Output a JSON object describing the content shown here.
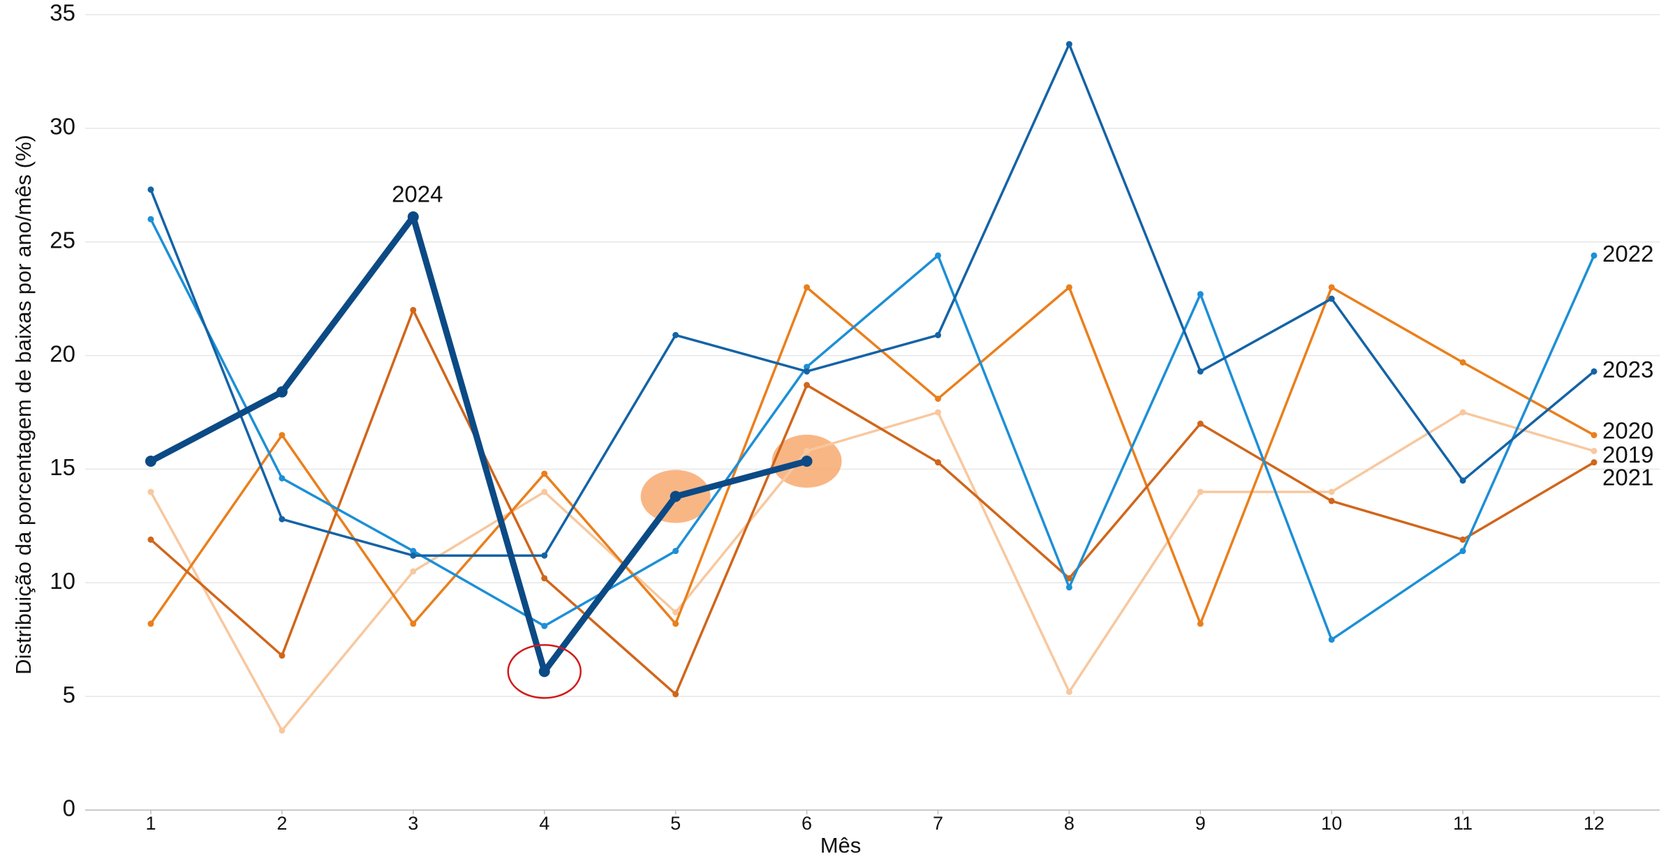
{
  "chart_data": {
    "type": "line",
    "x_label": "Mês",
    "y_label": "Distribuição da porcentagem de baixas por ano/mês (%)",
    "x": [
      1,
      2,
      3,
      4,
      5,
      6,
      7,
      8,
      9,
      10,
      11,
      12
    ],
    "xlim": [
      0.5,
      12.5
    ],
    "xticks": [
      1,
      2,
      3,
      4,
      5,
      6,
      7,
      8,
      9,
      10,
      11,
      12
    ],
    "ylim": [
      0,
      35
    ],
    "yticks": [
      0,
      5,
      10,
      15,
      20,
      25,
      30,
      35
    ],
    "grid": true,
    "series": [
      {
        "name": "2019",
        "color": "#f8c89f",
        "values": [
          14.0,
          3.5,
          10.5,
          14.0,
          8.7,
          15.8,
          17.5,
          5.2,
          14.0,
          14.0,
          17.5,
          15.8
        ]
      },
      {
        "name": "2020",
        "color": "#ea7f1c",
        "values": [
          8.2,
          16.5,
          8.2,
          14.8,
          8.2,
          23.0,
          18.1,
          23.0,
          8.2,
          23.0,
          19.7,
          16.5
        ]
      },
      {
        "name": "2021",
        "color": "#d0661b",
        "values": [
          11.9,
          6.8,
          22.0,
          10.2,
          5.1,
          18.7,
          15.3,
          10.2,
          17.0,
          13.6,
          11.9,
          15.3
        ]
      },
      {
        "name": "2022",
        "color": "#1d8fd6",
        "values": [
          26.0,
          14.6,
          11.4,
          8.1,
          11.4,
          19.5,
          24.4,
          9.8,
          22.7,
          7.5,
          11.4,
          24.4
        ]
      },
      {
        "name": "2023",
        "color": "#1463a6",
        "values": [
          27.3,
          12.8,
          11.2,
          11.2,
          20.9,
          19.3,
          20.9,
          33.7,
          19.3,
          22.5,
          14.5,
          19.3
        ]
      },
      {
        "name": "2024",
        "color": "#0b4a85",
        "values": [
          15.35,
          18.4,
          26.1,
          6.1,
          13.8,
          15.35,
          null,
          null,
          null,
          null,
          null,
          null
        ]
      }
    ]
  }
}
